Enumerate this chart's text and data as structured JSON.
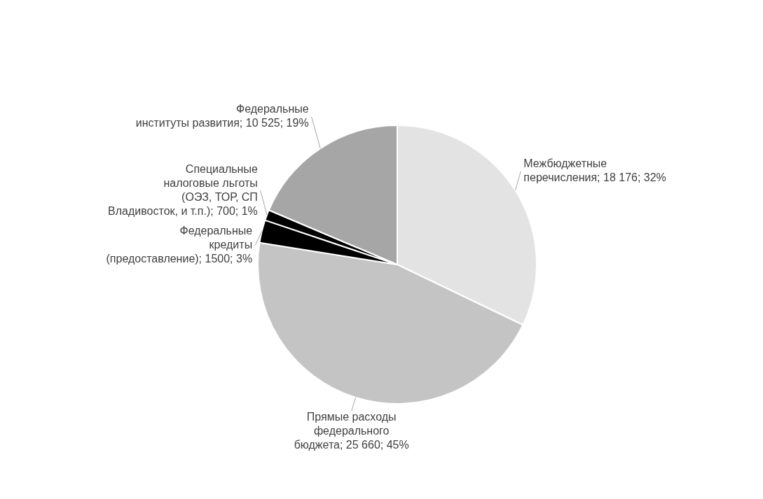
{
  "chart_data": {
    "type": "pie",
    "categories": [
      "Межбюджетные перечисления",
      "Прямые расходы федерального бюджета",
      "Федеральные кредиты (предоставление)",
      "Специальные налоговые льготы (ОЭЗ, ТОР, СП Владивосток, и т.п.)",
      "Федеральные институты развития"
    ],
    "values": [
      18176,
      25660,
      1500,
      700,
      10525
    ],
    "value_labels": [
      "18 176; 32%",
      "25 660; 45%",
      "1500; 3%",
      "700; 1%",
      "10 525; 19%"
    ],
    "colors": [
      "#e3e3e3",
      "#c4c4c4",
      "#000000",
      "#000000",
      "#a6a6a6"
    ],
    "legend": false
  }
}
